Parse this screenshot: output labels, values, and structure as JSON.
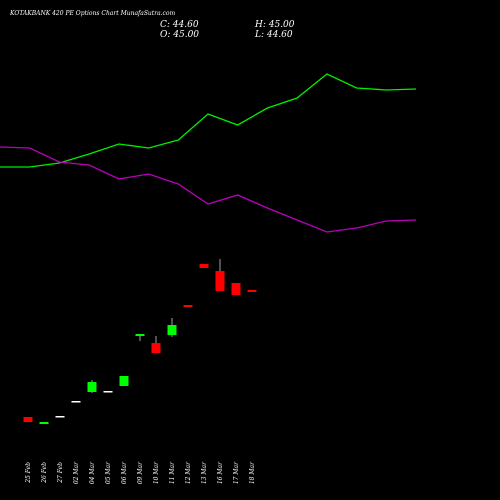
{
  "chart_data": {
    "type": "candlestick",
    "title": "KOTAKBANK 420 PE Options Chart MunafaSutra.com",
    "summary": [
      "C: 44.60",
      "H: 45.00",
      "O: 45.00",
      "L: 44.60"
    ],
    "categories": [
      "25 Feb",
      "26 Feb",
      "27 Feb",
      "02 Mar",
      "04 Mar",
      "05 Mar",
      "06 Mar",
      "09 Mar",
      "10 Mar",
      "11 Mar",
      "12 Mar",
      "13 Mar",
      "16 Mar",
      "17 Mar",
      "18 Mar"
    ],
    "open": [
      19.6,
      18.2,
      19.8,
      22.8,
      24.6,
      24.8,
      25.8,
      35.8,
      34.4,
      36.0,
      42.0,
      50.2,
      48.8,
      46.4,
      45.0
    ],
    "high": [
      19.6,
      18.6,
      19.8,
      22.8,
      27.0,
      24.8,
      27.8,
      36.2,
      35.8,
      39.4,
      42.0,
      50.2,
      51.2,
      46.4,
      45.0
    ],
    "low": [
      18.6,
      18.2,
      19.8,
      22.8,
      24.4,
      24.8,
      25.8,
      34.8,
      32.4,
      35.6,
      41.6,
      49.4,
      44.8,
      44.0,
      44.6
    ],
    "close": [
      18.6,
      18.6,
      19.8,
      22.8,
      26.6,
      24.8,
      27.8,
      36.2,
      32.4,
      38.0,
      41.6,
      49.4,
      44.8,
      44.0,
      44.6
    ],
    "up_color": "#00ff00",
    "down_color": "#ff0000",
    "flat_color": "#ffffff",
    "lines": [
      {
        "color": "#00ee00",
        "values": [
          133,
          133,
          137,
          146,
          156,
          152,
          160,
          186,
          175,
          192,
          202,
          226,
          212,
          210,
          211
        ]
      },
      {
        "color": "#bb00bb",
        "values": [
          153,
          152,
          138,
          135,
          121,
          126,
          116,
          96,
          105,
          92,
          80,
          68,
          72,
          79,
          80
        ]
      }
    ]
  }
}
